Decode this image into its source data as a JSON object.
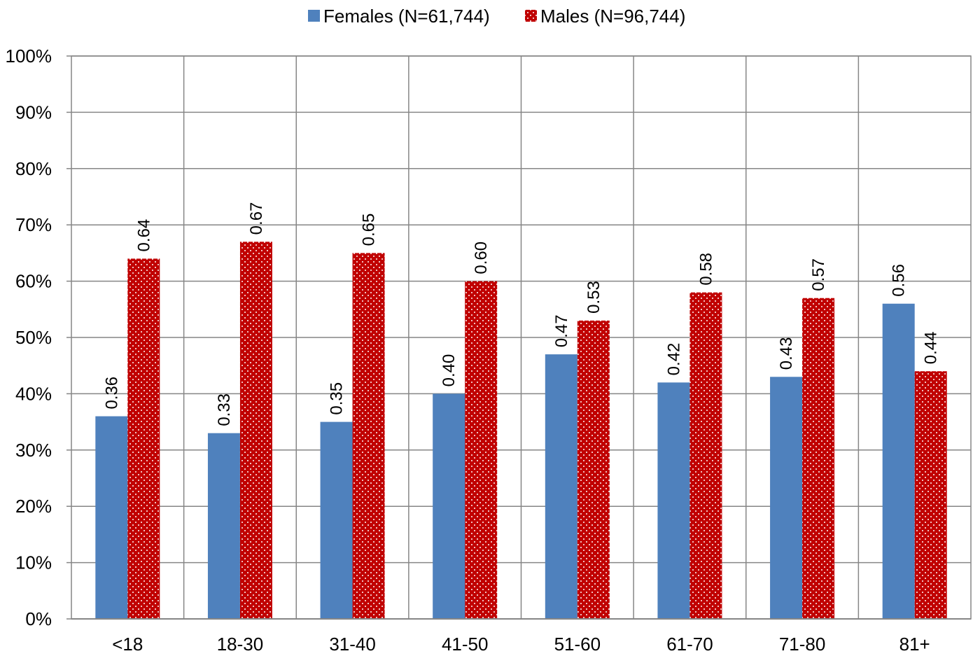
{
  "chart_data": {
    "type": "bar",
    "title": "",
    "xlabel": "",
    "ylabel": "",
    "categories": [
      "<18",
      "18-30",
      "31-40",
      "41-50",
      "51-60",
      "61-70",
      "71-80",
      "81+"
    ],
    "series": [
      {
        "name": "Females (N=61,744)",
        "color": "#4F81BD",
        "pattern": "solid",
        "values": [
          0.36,
          0.33,
          0.35,
          0.4,
          0.47,
          0.42,
          0.43,
          0.56
        ],
        "labels": [
          "0.36",
          "0.33",
          "0.35",
          "0.40",
          "0.47",
          "0.42",
          "0.43",
          "0.56"
        ]
      },
      {
        "name": "Males (N=96,744)",
        "color": "#C00000",
        "pattern": "white-dotted",
        "values": [
          0.64,
          0.67,
          0.65,
          0.6,
          0.53,
          0.58,
          0.57,
          0.44
        ],
        "labels": [
          "0.64",
          "0.67",
          "0.65",
          "0.60",
          "0.53",
          "0.58",
          "0.57",
          "0.44"
        ]
      }
    ],
    "ylim": [
      0,
      1
    ],
    "yticks": [
      0,
      0.1,
      0.2,
      0.3,
      0.4,
      0.5,
      0.6,
      0.7,
      0.8,
      0.9,
      1.0
    ],
    "ytick_labels": [
      "0%",
      "10%",
      "20%",
      "30%",
      "40%",
      "50%",
      "60%",
      "70%",
      "80%",
      "90%",
      "100%"
    ],
    "grid": true,
    "legend_position": "top-center",
    "data_label_orientation": "vertical"
  }
}
